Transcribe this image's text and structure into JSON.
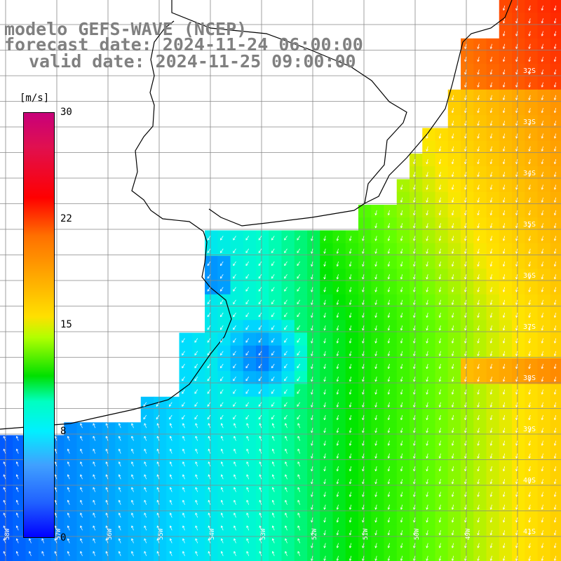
{
  "title": {
    "model": "modelo GEFS-WAVE (NCEP)",
    "forecast": "forecast date: 2024-11-24 06:00:00",
    "valid": "valid date: 2024-11-25 09:00:00"
  },
  "colorbar": {
    "unit": "[m/s]",
    "ticks": [
      "30",
      "22",
      "15",
      "8",
      "0"
    ],
    "colors": [
      "#c8007a",
      "#ff0000",
      "#ffe000",
      "#00e000",
      "#00f0ff",
      "#0000ff"
    ]
  },
  "lat_labels": [
    "32S",
    "33S",
    "34S",
    "35S",
    "36S",
    "37S",
    "38S",
    "39S",
    "40S",
    "41S"
  ],
  "lon_labels": [
    "58W",
    "57W",
    "56W",
    "55W",
    "54W",
    "53W",
    "52W",
    "51W",
    "50W",
    "49W"
  ],
  "colors": {
    "land": "#ffffff",
    "grid": "#888888",
    "coast": "#000000",
    "arrows": "#ffffff",
    "title": "#808080"
  }
}
